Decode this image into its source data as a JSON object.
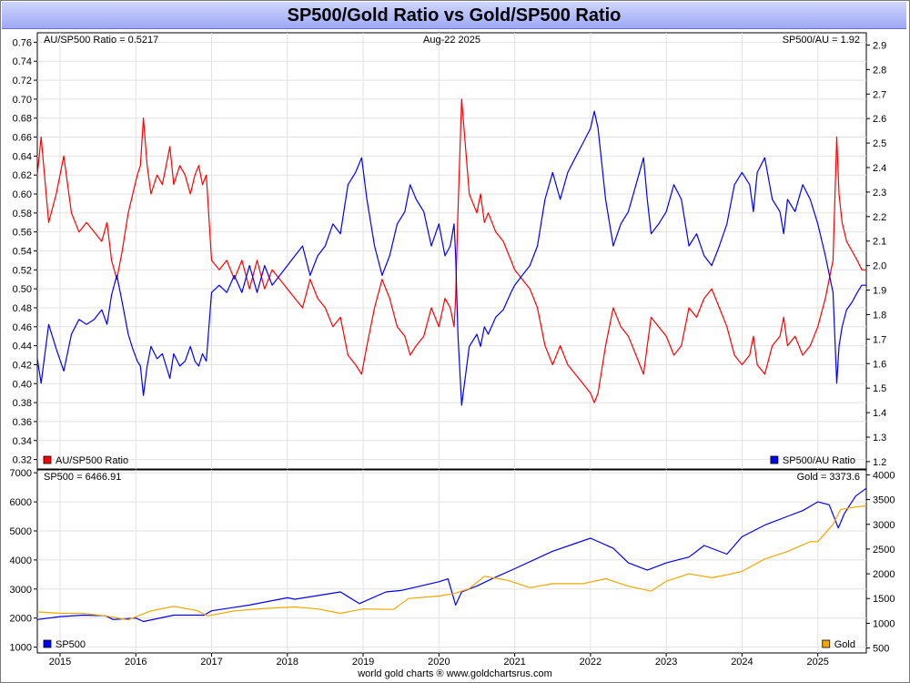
{
  "page": {
    "title": "SP500/Gold Ratio vs Gold/SP500 Ratio",
    "footer": "world gold charts ® www.goldchartsrus.com"
  },
  "chart_data": [
    {
      "type": "line",
      "panel": "ratio",
      "date_label": "Aug-22  2025",
      "left_readout": "AU/SP500 Ratio = 0.5217",
      "right_readout": "SP500/AU = 1.92",
      "x_range": [
        2014.7,
        2025.64
      ],
      "x_ticks": [
        "2015",
        "2016",
        "2017",
        "2018",
        "2019",
        "2020",
        "2021",
        "2022",
        "2023",
        "2024",
        "2025"
      ],
      "left_axis": {
        "range": [
          0.31,
          0.77
        ],
        "ticks": [
          "0.32",
          "0.34",
          "0.36",
          "0.38",
          "0.40",
          "0.42",
          "0.44",
          "0.46",
          "0.48",
          "0.50",
          "0.52",
          "0.54",
          "0.56",
          "0.58",
          "0.60",
          "0.62",
          "0.64",
          "0.66",
          "0.68",
          "0.70",
          "0.72",
          "0.74",
          "0.76"
        ]
      },
      "right_axis": {
        "range": [
          1.17,
          2.95
        ],
        "ticks": [
          "1.2",
          "1.3",
          "1.4",
          "1.5",
          "1.6",
          "1.7",
          "1.8",
          "1.9",
          "2.0",
          "2.1",
          "2.2",
          "2.3",
          "2.4",
          "2.5",
          "2.6",
          "2.7",
          "2.8",
          "2.9"
        ]
      },
      "grid": true,
      "series": [
        {
          "name": "AU/SP500 Ratio",
          "axis": "left",
          "color": "#ff0000",
          "x": [
            2014.7,
            2014.75,
            2014.85,
            2014.95,
            2015.05,
            2015.15,
            2015.25,
            2015.35,
            2015.45,
            2015.55,
            2015.62,
            2015.68,
            2015.75,
            2015.82,
            2015.9,
            2015.96,
            2016.02,
            2016.06,
            2016.1,
            2016.15,
            2016.2,
            2016.28,
            2016.35,
            2016.45,
            2016.5,
            2016.58,
            2016.65,
            2016.72,
            2016.78,
            2016.83,
            2016.88,
            2016.93,
            2017.0,
            2017.1,
            2017.2,
            2017.3,
            2017.4,
            2017.5,
            2017.6,
            2017.7,
            2017.8,
            2017.9,
            2018.0,
            2018.1,
            2018.2,
            2018.3,
            2018.4,
            2018.5,
            2018.6,
            2018.7,
            2018.8,
            2018.9,
            2018.98,
            2019.05,
            2019.15,
            2019.25,
            2019.35,
            2019.45,
            2019.55,
            2019.62,
            2019.7,
            2019.8,
            2019.9,
            2020.0,
            2020.08,
            2020.15,
            2020.2,
            2020.22,
            2020.25,
            2020.3,
            2020.4,
            2020.5,
            2020.55,
            2020.6,
            2020.65,
            2020.75,
            2020.85,
            2020.95,
            2021.0,
            2021.1,
            2021.2,
            2021.3,
            2021.4,
            2021.5,
            2021.6,
            2021.7,
            2021.8,
            2021.9,
            2022.0,
            2022.05,
            2022.1,
            2022.2,
            2022.3,
            2022.4,
            2022.5,
            2022.6,
            2022.7,
            2022.75,
            2022.8,
            2022.9,
            2023.0,
            2023.1,
            2023.2,
            2023.3,
            2023.4,
            2023.5,
            2023.6,
            2023.7,
            2023.8,
            2023.9,
            2024.0,
            2024.1,
            2024.15,
            2024.2,
            2024.3,
            2024.4,
            2024.5,
            2024.55,
            2024.6,
            2024.7,
            2024.8,
            2024.9,
            2025.0,
            2025.1,
            2025.2,
            2025.25,
            2025.28,
            2025.32,
            2025.38,
            2025.45,
            2025.52,
            2025.58,
            2025.64
          ],
          "values": [
            0.62,
            0.66,
            0.57,
            0.6,
            0.64,
            0.58,
            0.56,
            0.57,
            0.56,
            0.55,
            0.57,
            0.53,
            0.51,
            0.54,
            0.58,
            0.6,
            0.62,
            0.63,
            0.68,
            0.63,
            0.6,
            0.62,
            0.61,
            0.65,
            0.61,
            0.63,
            0.62,
            0.6,
            0.62,
            0.63,
            0.61,
            0.62,
            0.53,
            0.52,
            0.53,
            0.51,
            0.53,
            0.5,
            0.53,
            0.5,
            0.52,
            0.51,
            0.5,
            0.49,
            0.48,
            0.51,
            0.49,
            0.48,
            0.46,
            0.47,
            0.43,
            0.42,
            0.41,
            0.44,
            0.48,
            0.51,
            0.49,
            0.46,
            0.45,
            0.43,
            0.44,
            0.45,
            0.48,
            0.46,
            0.49,
            0.48,
            0.46,
            0.49,
            0.58,
            0.7,
            0.6,
            0.58,
            0.6,
            0.57,
            0.58,
            0.56,
            0.55,
            0.53,
            0.52,
            0.51,
            0.5,
            0.48,
            0.44,
            0.42,
            0.44,
            0.42,
            0.41,
            0.4,
            0.39,
            0.38,
            0.39,
            0.44,
            0.48,
            0.46,
            0.45,
            0.43,
            0.41,
            0.44,
            0.47,
            0.46,
            0.45,
            0.43,
            0.44,
            0.48,
            0.47,
            0.49,
            0.5,
            0.48,
            0.46,
            0.43,
            0.42,
            0.43,
            0.45,
            0.42,
            0.41,
            0.44,
            0.45,
            0.47,
            0.44,
            0.45,
            0.43,
            0.44,
            0.46,
            0.49,
            0.53,
            0.66,
            0.6,
            0.57,
            0.55,
            0.54,
            0.53,
            0.52,
            0.52
          ]
        },
        {
          "name": "SP500/AU Ratio",
          "axis": "right",
          "color": "#0000ff",
          "x": [
            2014.7,
            2014.75,
            2014.85,
            2014.95,
            2015.05,
            2015.15,
            2015.25,
            2015.35,
            2015.45,
            2015.55,
            2015.62,
            2015.68,
            2015.75,
            2015.82,
            2015.9,
            2015.96,
            2016.02,
            2016.06,
            2016.1,
            2016.15,
            2016.2,
            2016.28,
            2016.35,
            2016.45,
            2016.5,
            2016.58,
            2016.65,
            2016.72,
            2016.78,
            2016.83,
            2016.88,
            2016.93,
            2017.0,
            2017.1,
            2017.2,
            2017.3,
            2017.4,
            2017.5,
            2017.6,
            2017.7,
            2017.8,
            2017.9,
            2018.0,
            2018.1,
            2018.2,
            2018.3,
            2018.4,
            2018.5,
            2018.6,
            2018.7,
            2018.8,
            2018.9,
            2018.98,
            2019.05,
            2019.15,
            2019.25,
            2019.35,
            2019.45,
            2019.55,
            2019.62,
            2019.7,
            2019.8,
            2019.9,
            2020.0,
            2020.08,
            2020.15,
            2020.2,
            2020.22,
            2020.25,
            2020.3,
            2020.4,
            2020.5,
            2020.55,
            2020.6,
            2020.65,
            2020.75,
            2020.85,
            2020.95,
            2021.0,
            2021.1,
            2021.2,
            2021.3,
            2021.4,
            2021.5,
            2021.6,
            2021.7,
            2021.8,
            2021.9,
            2022.0,
            2022.05,
            2022.1,
            2022.2,
            2022.3,
            2022.4,
            2022.5,
            2022.6,
            2022.7,
            2022.75,
            2022.8,
            2022.9,
            2023.0,
            2023.1,
            2023.2,
            2023.3,
            2023.4,
            2023.5,
            2023.6,
            2023.7,
            2023.8,
            2023.9,
            2024.0,
            2024.1,
            2024.15,
            2024.2,
            2024.3,
            2024.4,
            2024.5,
            2024.55,
            2024.6,
            2024.7,
            2024.8,
            2024.9,
            2025.0,
            2025.1,
            2025.2,
            2025.25,
            2025.28,
            2025.32,
            2025.38,
            2025.45,
            2025.52,
            2025.58,
            2025.64
          ],
          "values": [
            1.62,
            1.52,
            1.76,
            1.66,
            1.57,
            1.72,
            1.78,
            1.76,
            1.78,
            1.82,
            1.76,
            1.88,
            1.96,
            1.85,
            1.72,
            1.66,
            1.61,
            1.59,
            1.47,
            1.59,
            1.67,
            1.62,
            1.64,
            1.54,
            1.64,
            1.59,
            1.61,
            1.67,
            1.61,
            1.59,
            1.64,
            1.61,
            1.89,
            1.92,
            1.89,
            1.96,
            1.89,
            2.0,
            1.89,
            2.0,
            1.92,
            1.96,
            2.0,
            2.04,
            2.08,
            1.96,
            2.04,
            2.08,
            2.17,
            2.13,
            2.33,
            2.38,
            2.44,
            2.27,
            2.08,
            1.96,
            2.04,
            2.17,
            2.22,
            2.33,
            2.27,
            2.22,
            2.08,
            2.17,
            2.04,
            2.08,
            2.17,
            2.04,
            1.72,
            1.43,
            1.67,
            1.72,
            1.67,
            1.75,
            1.72,
            1.79,
            1.82,
            1.89,
            1.92,
            1.96,
            2.0,
            2.08,
            2.27,
            2.38,
            2.27,
            2.38,
            2.44,
            2.5,
            2.56,
            2.63,
            2.56,
            2.27,
            2.08,
            2.17,
            2.22,
            2.33,
            2.44,
            2.27,
            2.13,
            2.17,
            2.22,
            2.33,
            2.27,
            2.08,
            2.13,
            2.04,
            2.0,
            2.08,
            2.17,
            2.33,
            2.38,
            2.33,
            2.22,
            2.38,
            2.44,
            2.27,
            2.22,
            2.13,
            2.27,
            2.22,
            2.33,
            2.27,
            2.17,
            2.04,
            1.89,
            1.52,
            1.67,
            1.75,
            1.82,
            1.85,
            1.89,
            1.92,
            1.92
          ]
        }
      ]
    },
    {
      "type": "line",
      "panel": "price",
      "left_readout": "SP500 = 6466.91",
      "right_readout": "Gold = 3373.6",
      "x_range": [
        2014.7,
        2025.64
      ],
      "left_axis": {
        "range": [
          800,
          7100
        ],
        "ticks": [
          "1000",
          "2000",
          "3000",
          "4000",
          "5000",
          "6000",
          "7000"
        ]
      },
      "right_axis": {
        "range": [
          400,
          4100
        ],
        "ticks": [
          "500",
          "1000",
          "1500",
          "2000",
          "2500",
          "3000",
          "3500",
          "4000"
        ]
      },
      "grid": true,
      "series": [
        {
          "name": "SP500",
          "axis": "left",
          "color": "#0000ff",
          "x": [
            2014.7,
            2015.0,
            2015.3,
            2015.6,
            2015.7,
            2016.0,
            2016.1,
            2016.5,
            2016.9,
            2017.0,
            2017.5,
            2018.0,
            2018.1,
            2018.7,
            2018.95,
            2019.3,
            2019.5,
            2020.0,
            2020.12,
            2020.22,
            2020.3,
            2020.5,
            2020.7,
            2021.0,
            2021.5,
            2022.0,
            2022.3,
            2022.5,
            2022.75,
            2023.0,
            2023.3,
            2023.5,
            2023.8,
            2024.0,
            2024.3,
            2024.6,
            2024.8,
            2025.0,
            2025.15,
            2025.27,
            2025.35,
            2025.5,
            2025.64
          ],
          "values": [
            1950,
            2050,
            2100,
            2080,
            1950,
            2000,
            1880,
            2100,
            2100,
            2250,
            2450,
            2700,
            2650,
            2900,
            2500,
            2900,
            2950,
            3250,
            3350,
            2450,
            2900,
            3100,
            3350,
            3700,
            4300,
            4750,
            4400,
            3900,
            3650,
            3900,
            4100,
            4500,
            4200,
            4800,
            5200,
            5500,
            5700,
            6000,
            5900,
            5100,
            5600,
            6200,
            6467
          ]
        },
        {
          "name": "Gold",
          "axis": "right",
          "color": "#f2a700",
          "x": [
            2014.7,
            2015.0,
            2015.3,
            2015.6,
            2015.9,
            2016.2,
            2016.5,
            2016.8,
            2016.95,
            2017.3,
            2017.7,
            2018.1,
            2018.4,
            2018.7,
            2019.0,
            2019.4,
            2019.6,
            2020.0,
            2020.2,
            2020.4,
            2020.6,
            2020.9,
            2021.2,
            2021.5,
            2021.9,
            2022.2,
            2022.5,
            2022.8,
            2023.0,
            2023.3,
            2023.6,
            2023.8,
            2024.0,
            2024.3,
            2024.6,
            2024.9,
            2025.0,
            2025.2,
            2025.3,
            2025.5,
            2025.64
          ],
          "values": [
            1230,
            1200,
            1200,
            1150,
            1070,
            1250,
            1340,
            1260,
            1150,
            1250,
            1300,
            1330,
            1290,
            1200,
            1290,
            1280,
            1500,
            1550,
            1600,
            1700,
            1950,
            1870,
            1720,
            1800,
            1800,
            1900,
            1750,
            1650,
            1850,
            2000,
            1920,
            1980,
            2050,
            2300,
            2450,
            2650,
            2650,
            3000,
            3300,
            3350,
            3374
          ]
        }
      ]
    }
  ]
}
